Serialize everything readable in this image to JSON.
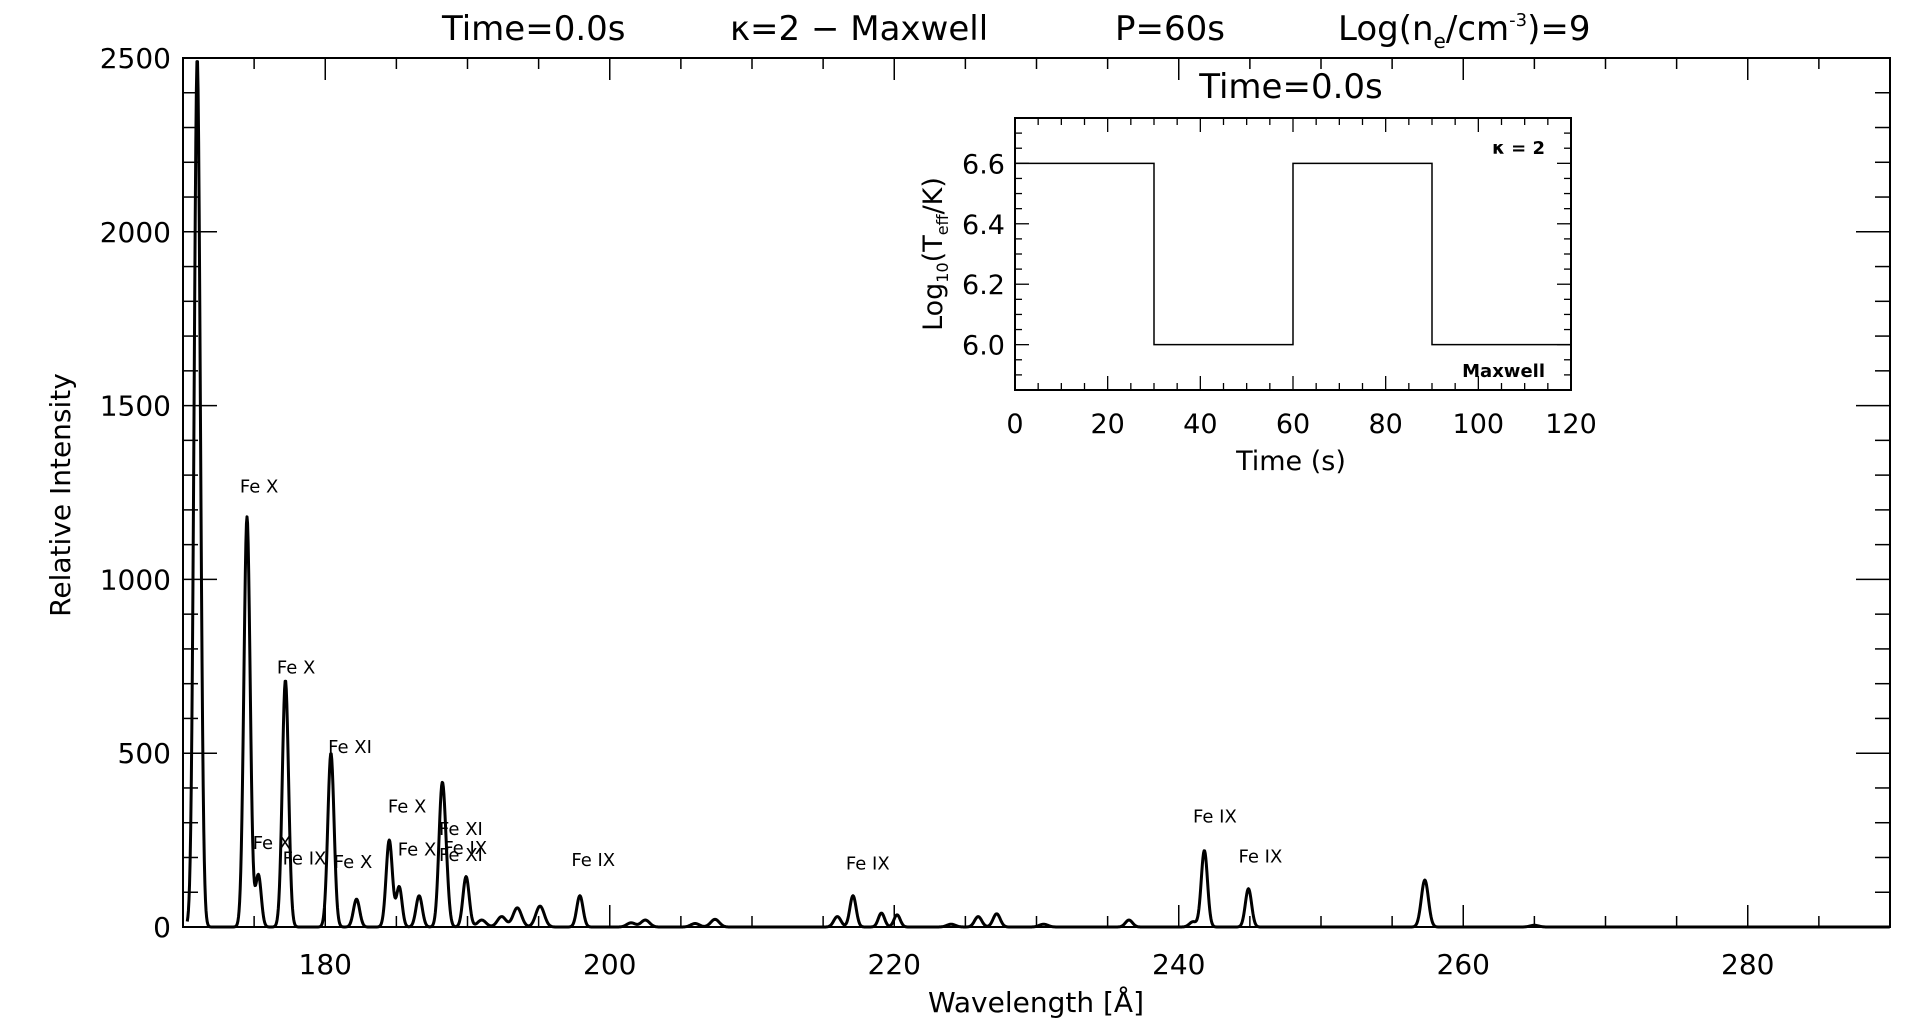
{
  "header": {
    "time_label": "Time=0.0s",
    "kappa_label": "κ=2 − Maxwell",
    "period_label": "P=60s",
    "density_prefix": "Log(n",
    "density_sub": "e",
    "density_mid": "/cm",
    "density_sup": "-3",
    "density_suffix": ")=9"
  },
  "colors": {
    "axis": "#000000",
    "spectrum": "#000000",
    "kappa_label": "#e00000",
    "maxwell_label": "#0000cc"
  },
  "chart_data": [
    {
      "type": "line",
      "title": "",
      "xlabel": "Wavelength  [Å]",
      "ylabel": "Relative Intensity",
      "xlim": [
        170,
        290
      ],
      "ylim": [
        0,
        2500
      ],
      "xticks": [
        180,
        200,
        220,
        240,
        260,
        280
      ],
      "yticks": [
        0,
        500,
        1000,
        1500,
        2000,
        2500
      ],
      "grid": false,
      "peaks": [
        {
          "x": 171.0,
          "y": 2500,
          "w": 0.22
        },
        {
          "x": 174.5,
          "y": 1180,
          "w": 0.22
        },
        {
          "x": 175.3,
          "y": 150,
          "w": 0.2
        },
        {
          "x": 177.2,
          "y": 710,
          "w": 0.22
        },
        {
          "x": 180.4,
          "y": 500,
          "w": 0.22
        },
        {
          "x": 182.2,
          "y": 80,
          "w": 0.22
        },
        {
          "x": 184.5,
          "y": 250,
          "w": 0.22
        },
        {
          "x": 185.2,
          "y": 115,
          "w": 0.2
        },
        {
          "x": 186.6,
          "y": 90,
          "w": 0.22
        },
        {
          "x": 188.2,
          "y": 380,
          "w": 0.22
        },
        {
          "x": 188.5,
          "y": 100,
          "w": 0.2
        },
        {
          "x": 189.9,
          "y": 145,
          "w": 0.22
        },
        {
          "x": 191.0,
          "y": 20,
          "w": 0.3
        },
        {
          "x": 192.4,
          "y": 30,
          "w": 0.3
        },
        {
          "x": 193.5,
          "y": 55,
          "w": 0.3
        },
        {
          "x": 195.1,
          "y": 60,
          "w": 0.3
        },
        {
          "x": 197.9,
          "y": 90,
          "w": 0.22
        },
        {
          "x": 201.5,
          "y": 12,
          "w": 0.3
        },
        {
          "x": 202.5,
          "y": 20,
          "w": 0.3
        },
        {
          "x": 206.0,
          "y": 10,
          "w": 0.3
        },
        {
          "x": 207.4,
          "y": 22,
          "w": 0.3
        },
        {
          "x": 216.0,
          "y": 30,
          "w": 0.25
        },
        {
          "x": 217.1,
          "y": 90,
          "w": 0.22
        },
        {
          "x": 219.1,
          "y": 40,
          "w": 0.22
        },
        {
          "x": 220.2,
          "y": 35,
          "w": 0.22
        },
        {
          "x": 224.0,
          "y": 8,
          "w": 0.3
        },
        {
          "x": 225.9,
          "y": 30,
          "w": 0.25
        },
        {
          "x": 227.2,
          "y": 38,
          "w": 0.25
        },
        {
          "x": 230.5,
          "y": 8,
          "w": 0.3
        },
        {
          "x": 236.5,
          "y": 20,
          "w": 0.25
        },
        {
          "x": 241.0,
          "y": 15,
          "w": 0.25
        },
        {
          "x": 241.8,
          "y": 220,
          "w": 0.22
        },
        {
          "x": 244.9,
          "y": 110,
          "w": 0.22
        },
        {
          "x": 257.3,
          "y": 135,
          "w": 0.25
        },
        {
          "x": 265.0,
          "y": 5,
          "w": 0.3
        }
      ],
      "annotations": [
        {
          "text": "Fe X",
          "x": 174.0,
          "y": 1250
        },
        {
          "text": "Fe X",
          "x": 176.6,
          "y": 730
        },
        {
          "text": "Fe XI",
          "x": 180.2,
          "y": 500
        },
        {
          "text": "Fe X",
          "x": 174.9,
          "y": 225
        },
        {
          "text": "Fe IX",
          "x": 177.0,
          "y": 180
        },
        {
          "text": "Fe X",
          "x": 180.6,
          "y": 170
        },
        {
          "text": "Fe X",
          "x": 184.4,
          "y": 330
        },
        {
          "text": "Fe X",
          "x": 185.1,
          "y": 205
        },
        {
          "text": "Fe XI",
          "x": 188.0,
          "y": 265
        },
        {
          "text": "Fe IX",
          "x": 188.3,
          "y": 210
        },
        {
          "text": "Fe XI",
          "x": 188.0,
          "y": 190
        },
        {
          "text": "Fe IX",
          "x": 197.3,
          "y": 175
        },
        {
          "text": "Fe IX",
          "x": 216.6,
          "y": 165
        },
        {
          "text": "Fe IX",
          "x": 241.0,
          "y": 300
        },
        {
          "text": "Fe IX",
          "x": 244.2,
          "y": 185
        }
      ]
    },
    {
      "type": "line",
      "title": "Time=0.0s",
      "xlabel": "Time (s)",
      "ylabel_prefix": "Log",
      "ylabel_sub1": "10",
      "ylabel_mid": "(T",
      "ylabel_sub2": "eff",
      "ylabel_suffix": "/K)",
      "xlim": [
        0,
        120
      ],
      "ylim": [
        5.85,
        6.75
      ],
      "xticks": [
        0,
        20,
        40,
        60,
        80,
        100,
        120
      ],
      "yticks": [
        6.0,
        6.2,
        6.4,
        6.6
      ],
      "ytick_labels": [
        "6.0",
        "6.2",
        "6.4",
        "6.6"
      ],
      "grid": false,
      "x": [
        0,
        30,
        30,
        60,
        60,
        90,
        90,
        120
      ],
      "y": [
        6.6,
        6.6,
        6.0,
        6.0,
        6.6,
        6.6,
        6.0,
        6.0
      ],
      "kappa_text": "κ = 2",
      "maxwell_text": "Maxwell"
    }
  ]
}
